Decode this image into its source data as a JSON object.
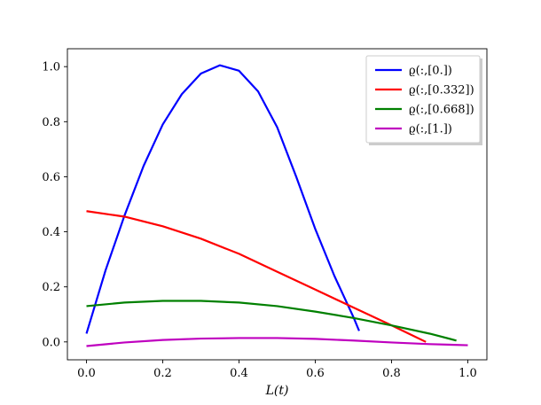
{
  "chart_data": {
    "type": "line",
    "title": "",
    "xlabel": "L(t)",
    "ylabel": "",
    "xlim": [
      -0.05,
      1.05
    ],
    "ylim": [
      -0.065,
      1.065
    ],
    "xticks": [
      0.0,
      0.2,
      0.4,
      0.6,
      0.8,
      1.0
    ],
    "xtick_labels": [
      "0.0",
      "0.2",
      "0.4",
      "0.6",
      "0.8",
      "1.0"
    ],
    "yticks": [
      0.0,
      0.2,
      0.4,
      0.6,
      0.8,
      1.0
    ],
    "ytick_labels": [
      "0.0",
      "0.2",
      "0.4",
      "0.6",
      "0.8",
      "1.0"
    ],
    "grid": false,
    "legend_position": "top-right",
    "series": [
      {
        "name": "ϱ(:,[0.])",
        "color": "#0000ff",
        "points": [
          [
            0.0,
            0.03
          ],
          [
            0.05,
            0.26
          ],
          [
            0.1,
            0.46
          ],
          [
            0.15,
            0.64
          ],
          [
            0.2,
            0.79
          ],
          [
            0.25,
            0.9
          ],
          [
            0.3,
            0.975
          ],
          [
            0.35,
            1.005
          ],
          [
            0.4,
            0.985
          ],
          [
            0.45,
            0.91
          ],
          [
            0.5,
            0.78
          ],
          [
            0.55,
            0.6
          ],
          [
            0.6,
            0.41
          ],
          [
            0.65,
            0.24
          ],
          [
            0.7,
            0.09
          ],
          [
            0.715,
            0.04
          ]
        ]
      },
      {
        "name": "ϱ(:,[0.332])",
        "color": "#ff0000",
        "points": [
          [
            0.0,
            0.475
          ],
          [
            0.1,
            0.455
          ],
          [
            0.2,
            0.42
          ],
          [
            0.3,
            0.375
          ],
          [
            0.4,
            0.32
          ],
          [
            0.5,
            0.255
          ],
          [
            0.6,
            0.19
          ],
          [
            0.7,
            0.125
          ],
          [
            0.8,
            0.06
          ],
          [
            0.89,
            0.0
          ]
        ]
      },
      {
        "name": "ϱ(:,[0.668])",
        "color": "#008000",
        "points": [
          [
            0.0,
            0.13
          ],
          [
            0.1,
            0.143
          ],
          [
            0.2,
            0.149
          ],
          [
            0.3,
            0.149
          ],
          [
            0.4,
            0.143
          ],
          [
            0.5,
            0.13
          ],
          [
            0.6,
            0.11
          ],
          [
            0.7,
            0.087
          ],
          [
            0.8,
            0.06
          ],
          [
            0.9,
            0.03
          ],
          [
            0.97,
            0.005
          ]
        ]
      },
      {
        "name": "ϱ(:,[1.])",
        "color": "#bf00bf",
        "points": [
          [
            0.0,
            -0.015
          ],
          [
            0.1,
            -0.002
          ],
          [
            0.2,
            0.007
          ],
          [
            0.3,
            0.012
          ],
          [
            0.4,
            0.014
          ],
          [
            0.5,
            0.014
          ],
          [
            0.6,
            0.011
          ],
          [
            0.7,
            0.005
          ],
          [
            0.8,
            -0.002
          ],
          [
            0.9,
            -0.008
          ],
          [
            1.0,
            -0.012
          ]
        ]
      }
    ]
  }
}
